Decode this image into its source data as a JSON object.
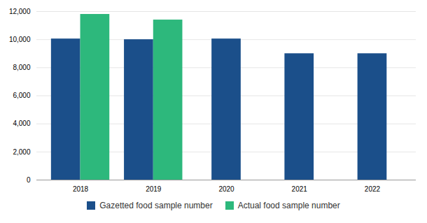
{
  "chart_data": {
    "type": "bar",
    "categories": [
      "2018",
      "2019",
      "2020",
      "2021",
      "2022"
    ],
    "series": [
      {
        "name": "Gazetted food sample number",
        "color": "#1b4f8a",
        "values": [
          10050,
          10000,
          10050,
          9000,
          9000
        ]
      },
      {
        "name": "Actual food sample number",
        "color": "#2db87c",
        "values": [
          11800,
          11400,
          null,
          null,
          null
        ]
      }
    ],
    "ylim": [
      0,
      12000
    ],
    "yticks": [
      0,
      {
        "value": 2000,
        "label": "2,000"
      },
      {
        "value": 4000,
        "label": "4,000"
      },
      {
        "value": 6000,
        "label": "6,000"
      },
      {
        "value": 8000,
        "label": "8,000"
      },
      {
        "value": 10000,
        "label": "10,000"
      },
      {
        "value": 12000,
        "label": "12,000"
      }
    ],
    "grid": true,
    "legend": "bottom"
  }
}
